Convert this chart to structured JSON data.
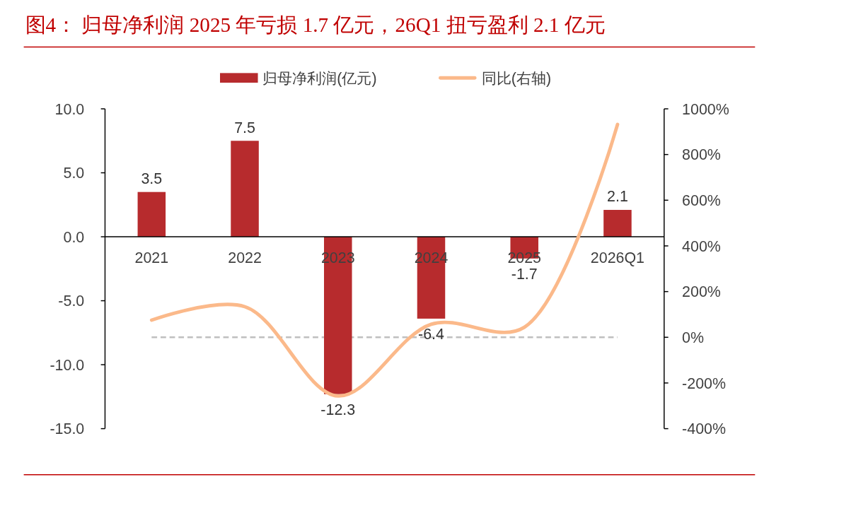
{
  "chart_data": {
    "type": "bar",
    "title": "图4：  归母净利润 2025 年亏损 1.7 亿元，26Q1 扭亏盈利 2.1 亿元",
    "categories": [
      "2021",
      "2022",
      "2023",
      "2024",
      "2025",
      "2026Q1"
    ],
    "series": [
      {
        "name": "归母净利润(亿元)",
        "color": "#b72b2d",
        "values": [
          3.5,
          7.5,
          -12.3,
          -6.4,
          -1.7,
          2.1
        ],
        "value_labels": [
          "3.5",
          "7.5",
          "-12.3",
          "-6.4",
          "-1.7",
          "2.1"
        ]
      },
      {
        "name": "同比(右轴)",
        "type": "line",
        "axis": "y2",
        "color": "#fbb98a",
        "values": [
          75,
          134,
          -257,
          57,
          44,
          932
        ]
      }
    ],
    "ylim": [
      -15,
      10
    ],
    "yticks": [
      {
        "value": -15,
        "label": "-15.0"
      },
      {
        "value": -10,
        "label": "-10.0"
      },
      {
        "value": -5,
        "label": "-5.0"
      },
      {
        "value": 0,
        "label": "0.0"
      },
      {
        "value": 5,
        "label": "5.0"
      },
      {
        "value": 10,
        "label": "10.0"
      }
    ],
    "y2lim": [
      -400,
      1000
    ],
    "y2ticks": [
      {
        "value": -400,
        "label": "-400%"
      },
      {
        "value": -200,
        "label": "-200%"
      },
      {
        "value": 0,
        "label": "0%"
      },
      {
        "value": 200,
        "label": "200%"
      },
      {
        "value": 400,
        "label": "400%"
      },
      {
        "value": 600,
        "label": "600%"
      },
      {
        "value": 800,
        "label": "800%"
      },
      {
        "value": 1000,
        "label": "1000%"
      }
    ],
    "ref_lines": [
      {
        "axis": "y2",
        "value": 0,
        "color": "#bfbfbf",
        "line_style": "dashed"
      }
    ],
    "legend": "top",
    "grid": false,
    "marker": "none"
  }
}
